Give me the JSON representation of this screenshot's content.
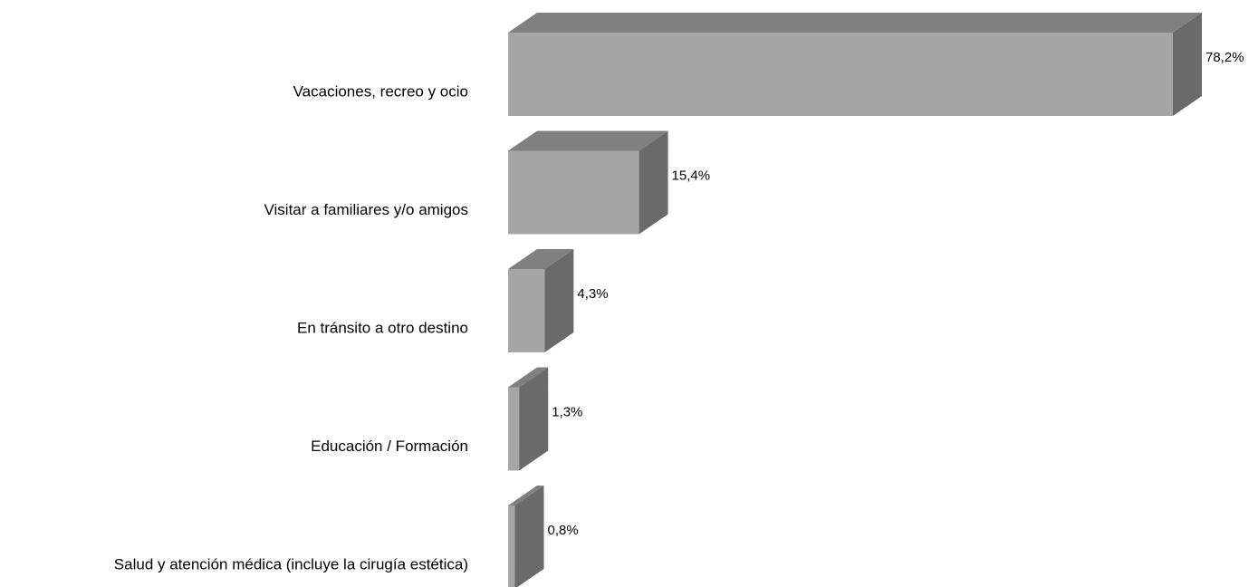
{
  "chart_data": {
    "type": "bar3d",
    "categories": [
      "Vacaciones, recreo y ocio",
      "Visitar a familiares y/o amigos",
      "En tránsito a otro destino",
      "Educación / Formación",
      "Salud y atención médica (incluye la cirugía estética)"
    ],
    "values": [
      78.2,
      15.4,
      4.3,
      1.3,
      0.8
    ],
    "value_labels": [
      "78,2%",
      "15,4%",
      "4,3%",
      "1,3%",
      "0,8%"
    ],
    "color": "#a6a6a6"
  }
}
